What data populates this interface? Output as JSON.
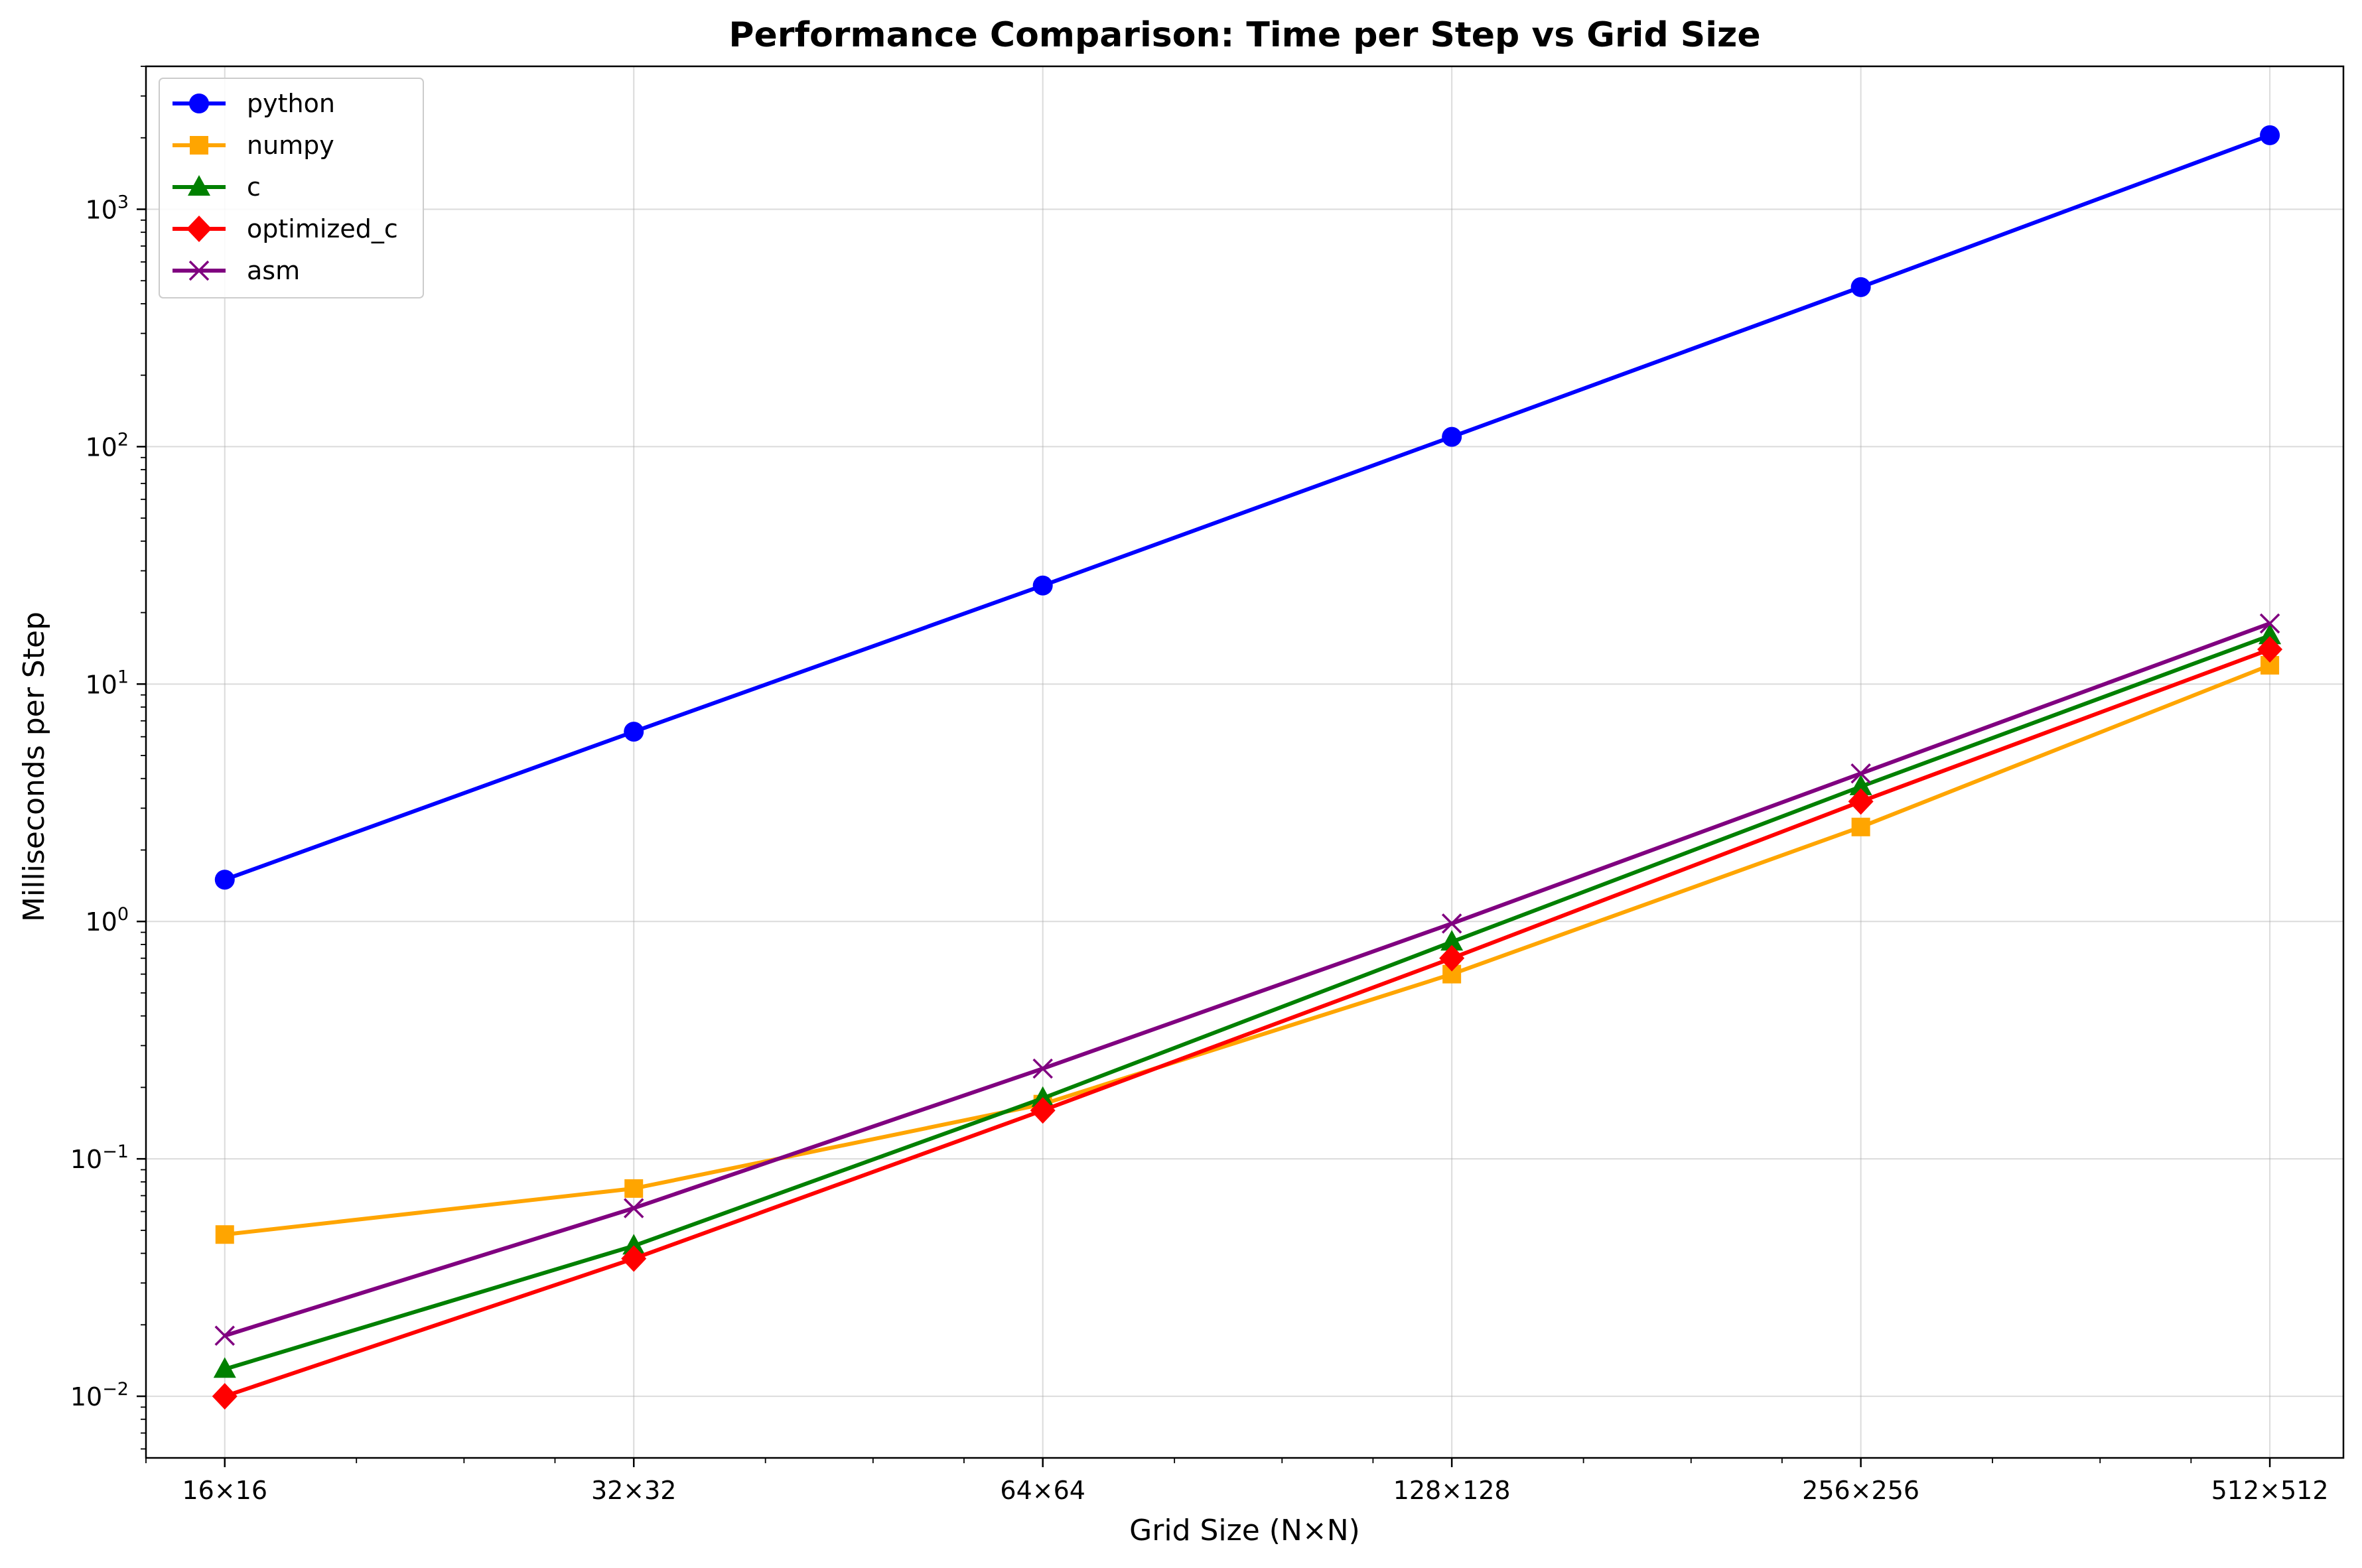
{
  "chart_data": {
    "type": "line",
    "title": "Performance Comparison: Time per Step vs Grid Size",
    "xlabel": "Grid Size (N×N)",
    "ylabel": "Milliseconds per Step",
    "x_scale": "log2",
    "y_scale": "log10",
    "x": [
      16,
      32,
      64,
      128,
      256,
      512
    ],
    "x_tick_labels": [
      "16×16",
      "32×32",
      "64×64",
      "128×128",
      "256×256",
      "512×512"
    ],
    "xlim": [
      14,
      580
    ],
    "ylim": [
      0.0055,
      4000
    ],
    "y_ticks": [
      {
        "value": 0.01,
        "base": "10",
        "exp": "−2"
      },
      {
        "value": 0.1,
        "base": "10",
        "exp": "−1"
      },
      {
        "value": 1,
        "base": "10",
        "exp": "0"
      },
      {
        "value": 10,
        "base": "10",
        "exp": "1"
      },
      {
        "value": 100,
        "base": "10",
        "exp": "2"
      },
      {
        "value": 1000,
        "base": "10",
        "exp": "3"
      }
    ],
    "grid": true,
    "legend_position": "top-left",
    "series": [
      {
        "name": "python",
        "color": "#0000ff",
        "marker": "circle",
        "values": [
          1.5,
          6.3,
          26,
          110,
          470,
          2050
        ]
      },
      {
        "name": "numpy",
        "color": "#ffa500",
        "marker": "square",
        "values": [
          0.048,
          0.075,
          0.17,
          0.6,
          2.5,
          12
        ]
      },
      {
        "name": "c",
        "color": "#008000",
        "marker": "triangle",
        "values": [
          0.013,
          0.043,
          0.18,
          0.82,
          3.7,
          16
        ]
      },
      {
        "name": "optimized_c",
        "color": "#ff0000",
        "marker": "diamond",
        "values": [
          0.01,
          0.038,
          0.16,
          0.7,
          3.2,
          14
        ]
      },
      {
        "name": "asm",
        "color": "#800080",
        "marker": "x",
        "values": [
          0.018,
          0.062,
          0.24,
          0.98,
          4.2,
          18
        ]
      }
    ]
  }
}
